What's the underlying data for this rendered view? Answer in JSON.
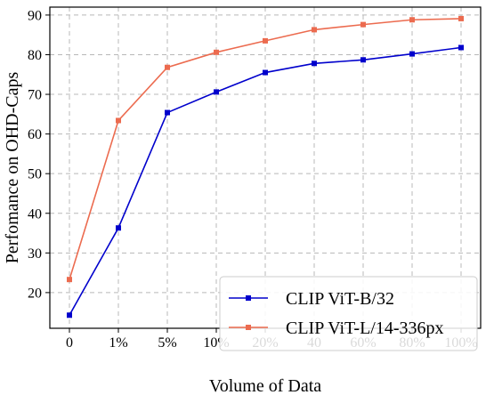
{
  "chart_data": {
    "type": "line",
    "title": "",
    "xlabel": "Volume of Data",
    "ylabel": "Perfomance on OHD-Caps",
    "categories": [
      "0",
      "1%",
      "5%",
      "10%",
      "20%",
      "40",
      "60%",
      "80%",
      "100%"
    ],
    "ylim": [
      11,
      92
    ],
    "yticks": [
      20,
      30,
      40,
      50,
      60,
      70,
      80,
      90
    ],
    "grid": true,
    "legend_position": "bottom-right",
    "series": [
      {
        "name": "CLIP ViT-B/32",
        "color": "#0000cc",
        "marker": "square",
        "values": [
          14.3,
          36.3,
          65.4,
          70.6,
          75.5,
          77.8,
          78.7,
          80.2,
          81.8
        ]
      },
      {
        "name": "CLIP ViT-L/14-336px",
        "color": "#ec6b4f",
        "marker": "square",
        "values": [
          23.3,
          63.4,
          76.8,
          80.6,
          83.5,
          86.3,
          87.6,
          88.8,
          89.1
        ]
      }
    ]
  }
}
